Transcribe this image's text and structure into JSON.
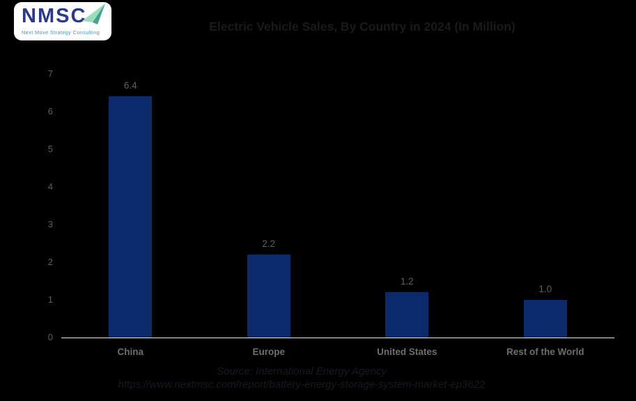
{
  "logo": {
    "brand": "NMSC",
    "tagline": "Next Move Strategy Consulting",
    "colors": {
      "background": "#FFFFFF",
      "brand_text": "#2B3990",
      "tagline_text": "#4796B8",
      "plane_light": "#9BDDBA",
      "plane_dark": "#3AA690"
    }
  },
  "chart_data": {
    "type": "bar",
    "title": "Electric Vehicle Sales, By Country in 2024 (In Million)",
    "categories": [
      "China",
      "Europe",
      "United States",
      "Rest of the World"
    ],
    "values": [
      6.4,
      2.2,
      1.2,
      1.0
    ],
    "value_labels": [
      "6.4",
      "2.2",
      "1.2",
      "1.0"
    ],
    "xlabel": "",
    "ylabel": "",
    "ylim": [
      0,
      7
    ],
    "yticks": [
      0,
      1,
      2,
      3,
      4,
      5,
      6,
      7
    ],
    "grid": false,
    "legend": false,
    "bar_color": "#0B2A6B"
  },
  "caption": {
    "line1": "Source: International Energy Agency",
    "line2": "https://www.nextmsc.com/report/battery-energy-storage-system-market-ep3622"
  },
  "colors": {
    "background": "#000000",
    "title_text": "#1A1A1A",
    "axis_line": "#E8E8E8",
    "tick_text": "#5F5F5F",
    "value_text": "#616161",
    "category_text": "#6E6E6E",
    "caption_text": "#191922"
  }
}
